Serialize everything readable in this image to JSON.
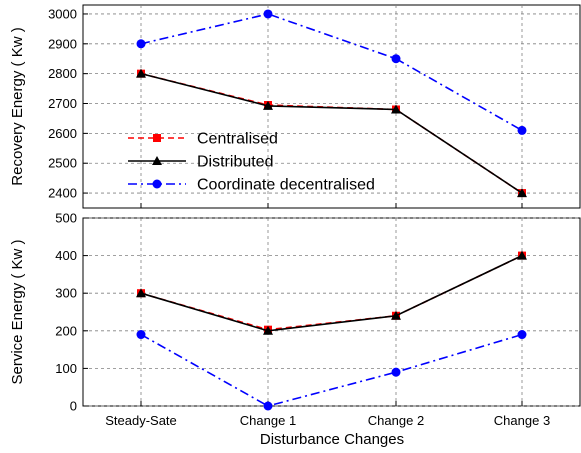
{
  "chart_data": [
    {
      "type": "line",
      "title": "",
      "xlabel": "",
      "ylabel": "Recovery Energy ( Kw )",
      "ylim": [
        2350,
        3030
      ],
      "yticks": [
        2400,
        2500,
        2600,
        2700,
        2800,
        2900,
        3000
      ],
      "categories": [
        "Steady-Sate",
        "Change 1",
        "Change 2",
        "Change 3"
      ],
      "grid": true,
      "legend_position": "bottom-left",
      "series": [
        {
          "name": "Centralised",
          "values": [
            2800,
            2695,
            2680,
            2400
          ],
          "color": "#ff0000",
          "style": "dash",
          "marker": "square"
        },
        {
          "name": "Distributed",
          "values": [
            2800,
            2692,
            2680,
            2400
          ],
          "color": "#000000",
          "style": "solid",
          "marker": "triangle"
        },
        {
          "name": "Coordinate decentralised",
          "values": [
            2900,
            3000,
            2850,
            2610
          ],
          "color": "#0000ff",
          "style": "dashdot",
          "marker": "circle"
        }
      ]
    },
    {
      "type": "line",
      "title": "",
      "xlabel": "Disturbance Changes",
      "ylabel": "Service Energy ( Kw )",
      "ylim": [
        0,
        500
      ],
      "yticks": [
        0,
        100,
        200,
        300,
        400,
        500
      ],
      "categories": [
        "Steady-Sate",
        "Change 1",
        "Change 2",
        "Change 3"
      ],
      "grid": true,
      "series": [
        {
          "name": "Centralised",
          "values": [
            300,
            203,
            240,
            400
          ],
          "color": "#ff0000",
          "style": "dash",
          "marker": "square"
        },
        {
          "name": "Distributed",
          "values": [
            300,
            200,
            240,
            400
          ],
          "color": "#000000",
          "style": "solid",
          "marker": "triangle"
        },
        {
          "name": "Coordinate decentralised",
          "values": [
            190,
            0,
            90,
            190
          ],
          "color": "#0000ff",
          "style": "dashdot",
          "marker": "circle"
        }
      ]
    }
  ]
}
